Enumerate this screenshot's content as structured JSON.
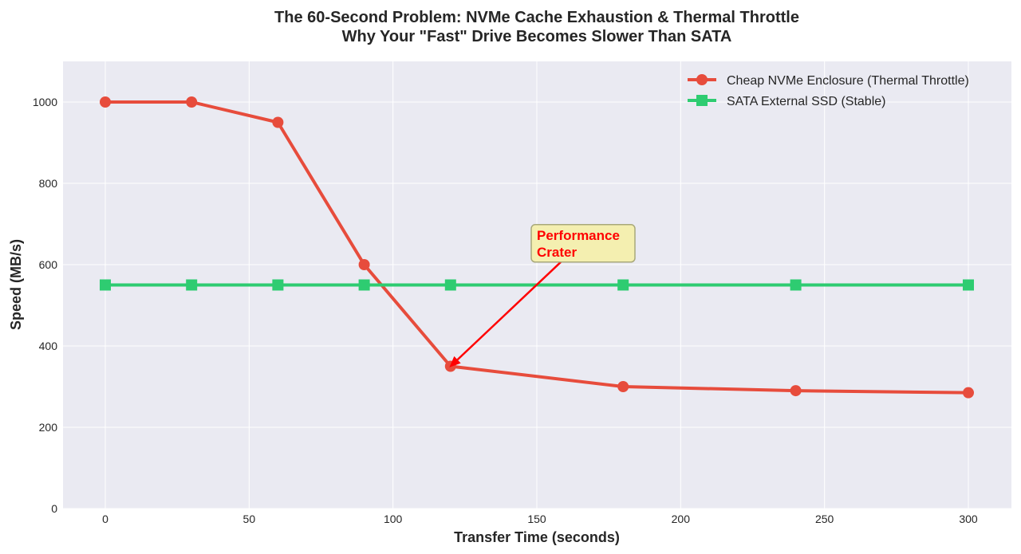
{
  "chart_data": {
    "type": "line",
    "title": "The 60-Second Problem: NVMe Cache Exhaustion & Thermal Throttle",
    "subtitle": "Why Your \"Fast\" Drive Becomes Slower Than SATA",
    "xlabel": "Transfer Time (seconds)",
    "ylabel": "Speed (MB/s)",
    "xlim": [
      -15,
      315
    ],
    "ylim": [
      0,
      1100
    ],
    "xticks": [
      0,
      50,
      100,
      150,
      200,
      250,
      300
    ],
    "yticks": [
      0,
      200,
      400,
      600,
      800,
      1000
    ],
    "grid": true,
    "legend_position": "top-right",
    "series": [
      {
        "name": "Cheap NVMe Enclosure (Thermal Throttle)",
        "color": "#e74c3c",
        "marker": "circle",
        "x": [
          0,
          30,
          60,
          90,
          120,
          180,
          240,
          300
        ],
        "y": [
          1000,
          1000,
          950,
          600,
          350,
          300,
          290,
          285
        ]
      },
      {
        "name": "SATA External SSD (Stable)",
        "color": "#2ecc71",
        "marker": "square",
        "x": [
          0,
          30,
          60,
          90,
          120,
          180,
          240,
          300
        ],
        "y": [
          550,
          550,
          550,
          550,
          550,
          550,
          550,
          550
        ]
      }
    ],
    "annotation": {
      "lines": [
        "Performance",
        "Crater"
      ],
      "color": "#ff0000",
      "box_color": "#f5f0a8",
      "text_anchor": [
        150,
        620
      ],
      "target": [
        120,
        350
      ]
    }
  }
}
